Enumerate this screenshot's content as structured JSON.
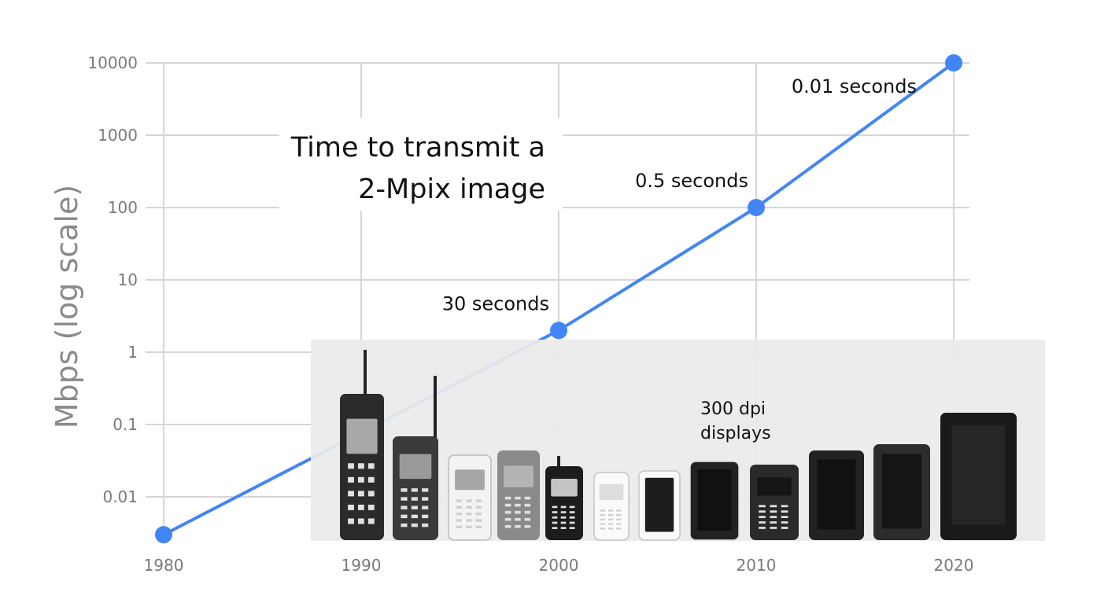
{
  "chart_data": {
    "type": "line",
    "title": "",
    "xlabel": "",
    "ylabel": "Mbps (log scale)",
    "y_scale": "log",
    "ylim": [
      0.003,
      10000
    ],
    "xlim": [
      1980,
      2020
    ],
    "grid": true,
    "x_ticks": [
      "1980",
      "1990",
      "2000",
      "2010",
      "2020"
    ],
    "y_ticks": [
      "10000",
      "1000",
      "100",
      "10",
      "1",
      "0.1",
      "0.01"
    ],
    "series": [
      {
        "color": "#4285f4",
        "points": [
          {
            "x": 1980,
            "y": 0.003
          },
          {
            "x": 2000,
            "y": 2
          },
          {
            "x": 2010,
            "y": 100
          },
          {
            "x": 2020,
            "y": 10000
          }
        ]
      }
    ],
    "annotations": {
      "title_box": [
        "Time to transmit a",
        "2-Mpix image"
      ],
      "point_labels": [
        {
          "x": 2000,
          "text": "30 seconds"
        },
        {
          "x": 2010,
          "text": "0.5 seconds"
        },
        {
          "x": 2020,
          "text": "0.01 seconds"
        }
      ],
      "displays_label": [
        "300 dpi",
        "displays"
      ]
    },
    "phones_panel": {
      "icons": [
        "brick-phone-icon",
        "candybar-antenna-phone-icon",
        "white-phone-icon",
        "nokia-phone-icon",
        "black-antenna-phone-icon",
        "small-white-phone-icon",
        "white-smartphone-icon",
        "iphone-icon",
        "blackberry-icon",
        "android-phone-icon",
        "phablet-icon",
        "tablet-icon"
      ]
    }
  }
}
